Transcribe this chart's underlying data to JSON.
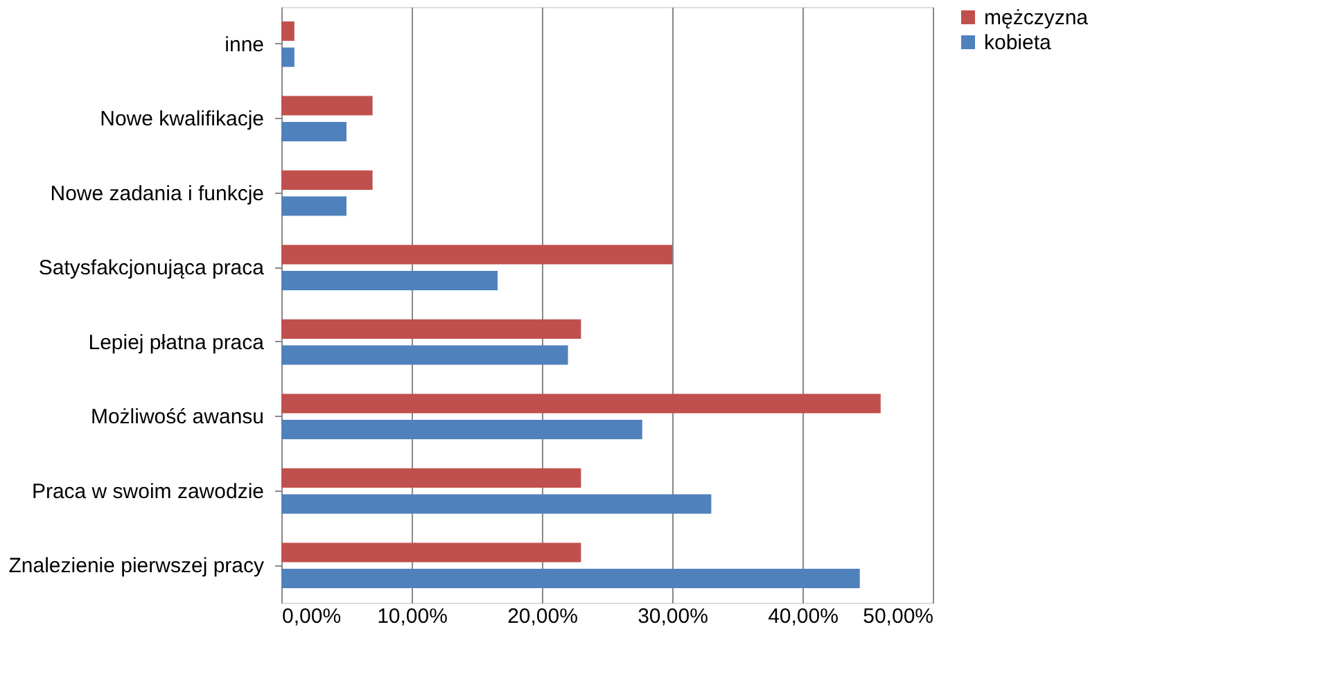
{
  "chart_data": {
    "type": "bar",
    "orientation": "horizontal",
    "categories": [
      "inne",
      "Nowe kwalifikacje",
      "Nowe zadania i funkcje",
      "Satysfakcjonująca praca",
      "Lepiej płatna praca",
      "Możliwość awansu",
      "Praca w swoim zawodzie",
      "Znalezienie pierwszej pracy"
    ],
    "series": [
      {
        "name": "mężczyzna",
        "color": "#c0504d",
        "values": [
          1,
          7,
          7,
          30,
          23,
          46,
          23,
          23
        ]
      },
      {
        "name": "kobieta",
        "color": "#4f81bd",
        "values": [
          1,
          5,
          5,
          16.6,
          22,
          27.7,
          33,
          44.4
        ]
      }
    ],
    "xlim": [
      0,
      50
    ],
    "xticks": [
      {
        "value": 0,
        "label": "0,00%"
      },
      {
        "value": 10,
        "label": "10,00%"
      },
      {
        "value": 20,
        "label": "20,00%"
      },
      {
        "value": 30,
        "label": "30,00%"
      },
      {
        "value": 40,
        "label": "40,00%"
      },
      {
        "value": 50,
        "label": "50,00%"
      }
    ],
    "grid": "x",
    "legend": "right"
  }
}
